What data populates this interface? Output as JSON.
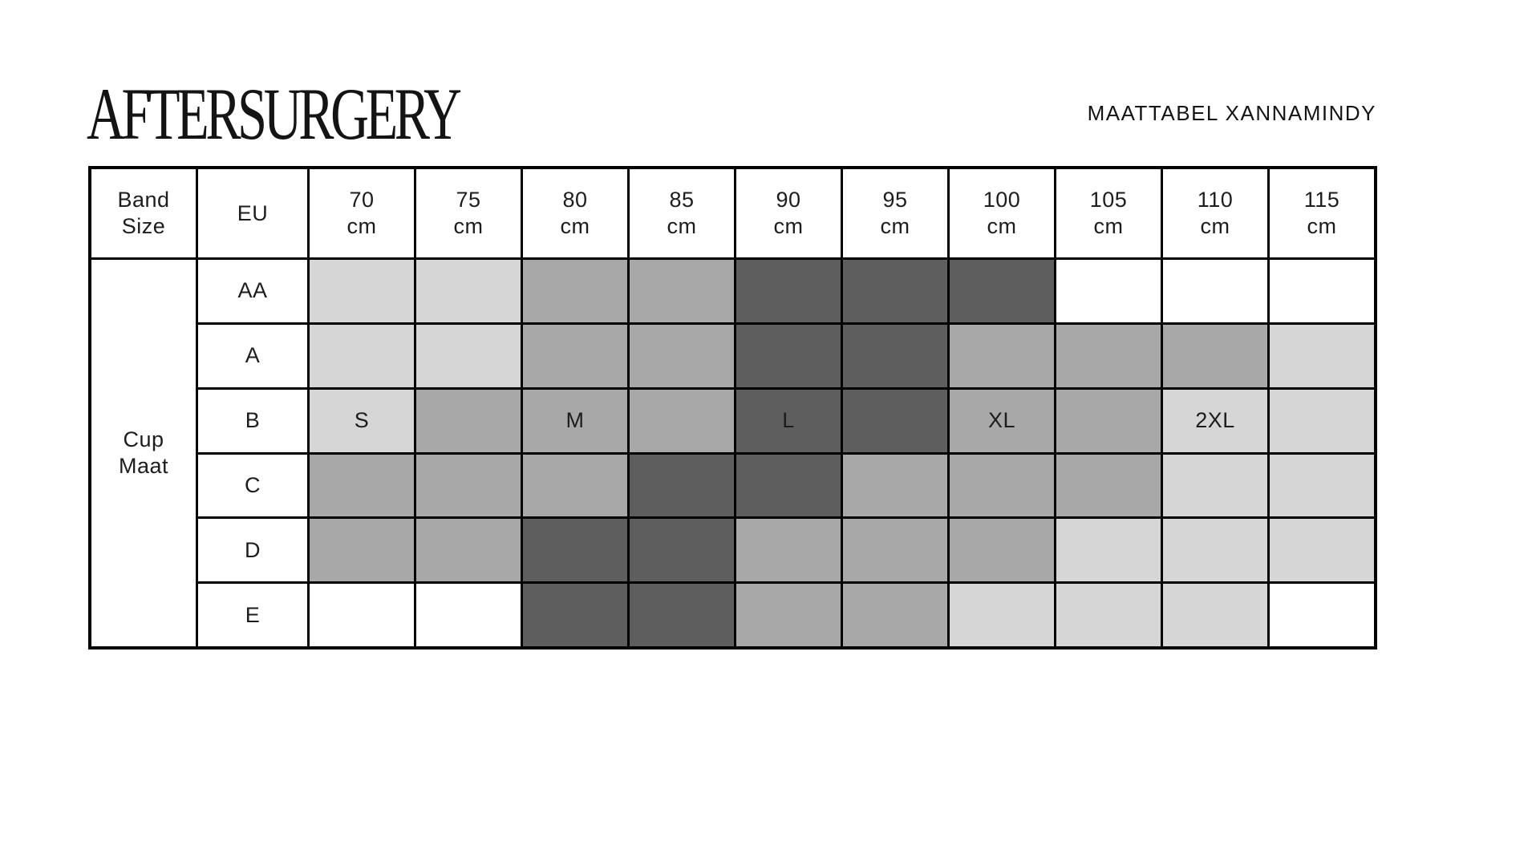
{
  "header": {
    "logo": "AFTERSURGERY",
    "title": "MAATTABEL XANNAMINDY"
  },
  "chart_data": {
    "type": "heatmap",
    "title": "MAATTABEL XANNAMINDY",
    "brand": "AFTERSURGERY",
    "corner_label": "Band\nSize",
    "eu_label": "EU",
    "row_group_label": "Cup\nMaat",
    "columns": [
      "70\ncm",
      "75\ncm",
      "80\ncm",
      "85\ncm",
      "90\ncm",
      "95\ncm",
      "100\ncm",
      "105\ncm",
      "110\ncm",
      "115\ncm"
    ],
    "rows": [
      "AA",
      "A",
      "B",
      "C",
      "D",
      "E"
    ],
    "shade_colors": {
      "W": "#ffffff",
      "L": "#d6d6d6",
      "M": "#a8a8a8",
      "D": "#5e5e5e"
    },
    "cells": [
      [
        "L",
        "L",
        "M",
        "M",
        "D",
        "D",
        "D",
        "W",
        "W",
        "W"
      ],
      [
        "L",
        "L",
        "M",
        "M",
        "D",
        "D",
        "M",
        "M",
        "M",
        "L"
      ],
      [
        "L",
        "M",
        "M",
        "M",
        "D",
        "D",
        "M",
        "M",
        "L",
        "L"
      ],
      [
        "M",
        "M",
        "M",
        "D",
        "D",
        "M",
        "M",
        "M",
        "L",
        "L"
      ],
      [
        "M",
        "M",
        "D",
        "D",
        "M",
        "M",
        "M",
        "L",
        "L",
        "L"
      ],
      [
        "W",
        "W",
        "D",
        "D",
        "M",
        "M",
        "L",
        "L",
        "L",
        "W"
      ]
    ],
    "cell_labels": [
      [
        "",
        "",
        "",
        "",
        "",
        "",
        "",
        "",
        "",
        ""
      ],
      [
        "",
        "",
        "",
        "",
        "",
        "",
        "",
        "",
        "",
        ""
      ],
      [
        "S",
        "",
        "M",
        "",
        "L",
        "",
        "XL",
        "",
        "2XL",
        ""
      ],
      [
        "",
        "",
        "",
        "",
        "",
        "",
        "",
        "",
        "",
        ""
      ],
      [
        "",
        "",
        "",
        "",
        "",
        "",
        "",
        "",
        "",
        ""
      ],
      [
        "",
        "",
        "",
        "",
        "",
        "",
        "",
        "",
        "",
        ""
      ]
    ],
    "grid_line_color": "#000000",
    "text_color": "#1d1d1d",
    "background": "#ffffff"
  }
}
